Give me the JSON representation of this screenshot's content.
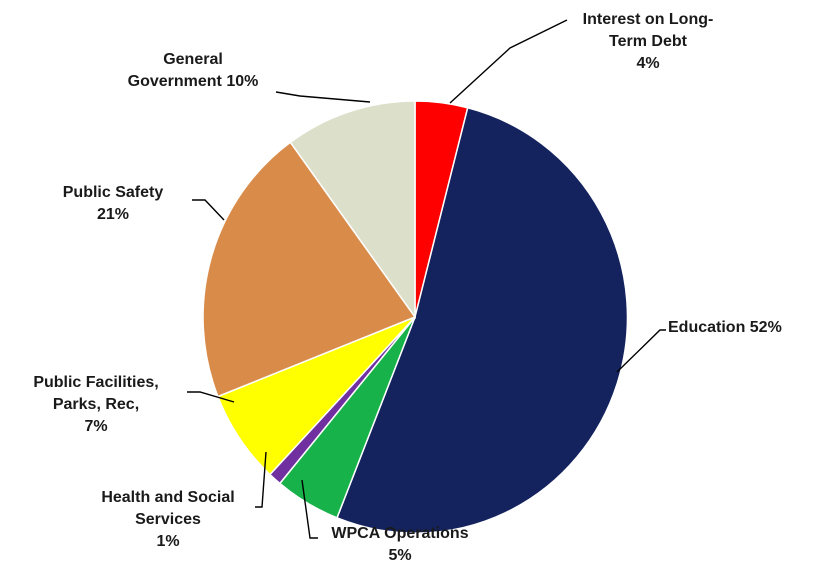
{
  "chart_data": {
    "type": "pie",
    "title": "",
    "start_angle_deg": 0,
    "direction": "clockwise",
    "slices": [
      {
        "name": "Interest on Long-Term Debt",
        "label_lines": [
          "Interest on Long-",
          "Term Debt",
          "4%"
        ],
        "value": 4,
        "color": "#ff0000"
      },
      {
        "name": "Education",
        "label_lines": [
          "Education 52%"
        ],
        "value": 52,
        "color": "#14235e"
      },
      {
        "name": "WPCA Operations",
        "label_lines": [
          "WPCA Operations",
          "5%"
        ],
        "value": 5,
        "color": "#17b34a"
      },
      {
        "name": "Health and Social Services",
        "label_lines": [
          "Health and Social",
          "Services",
          "1%"
        ],
        "value": 1,
        "color": "#7030a0"
      },
      {
        "name": "Public Facilities, Parks, Rec",
        "label_lines": [
          "Public Facilities,",
          "Parks, Rec,",
          "7%"
        ],
        "value": 7,
        "color": "#ffff00"
      },
      {
        "name": "Public Safety",
        "label_lines": [
          "Public Safety",
          "21%"
        ],
        "value": 21,
        "color": "#d98c4a"
      },
      {
        "name": "General Government",
        "label_lines": [
          "General",
          "Government 10%"
        ],
        "value": 10,
        "color": "#dcdfc9"
      }
    ]
  }
}
